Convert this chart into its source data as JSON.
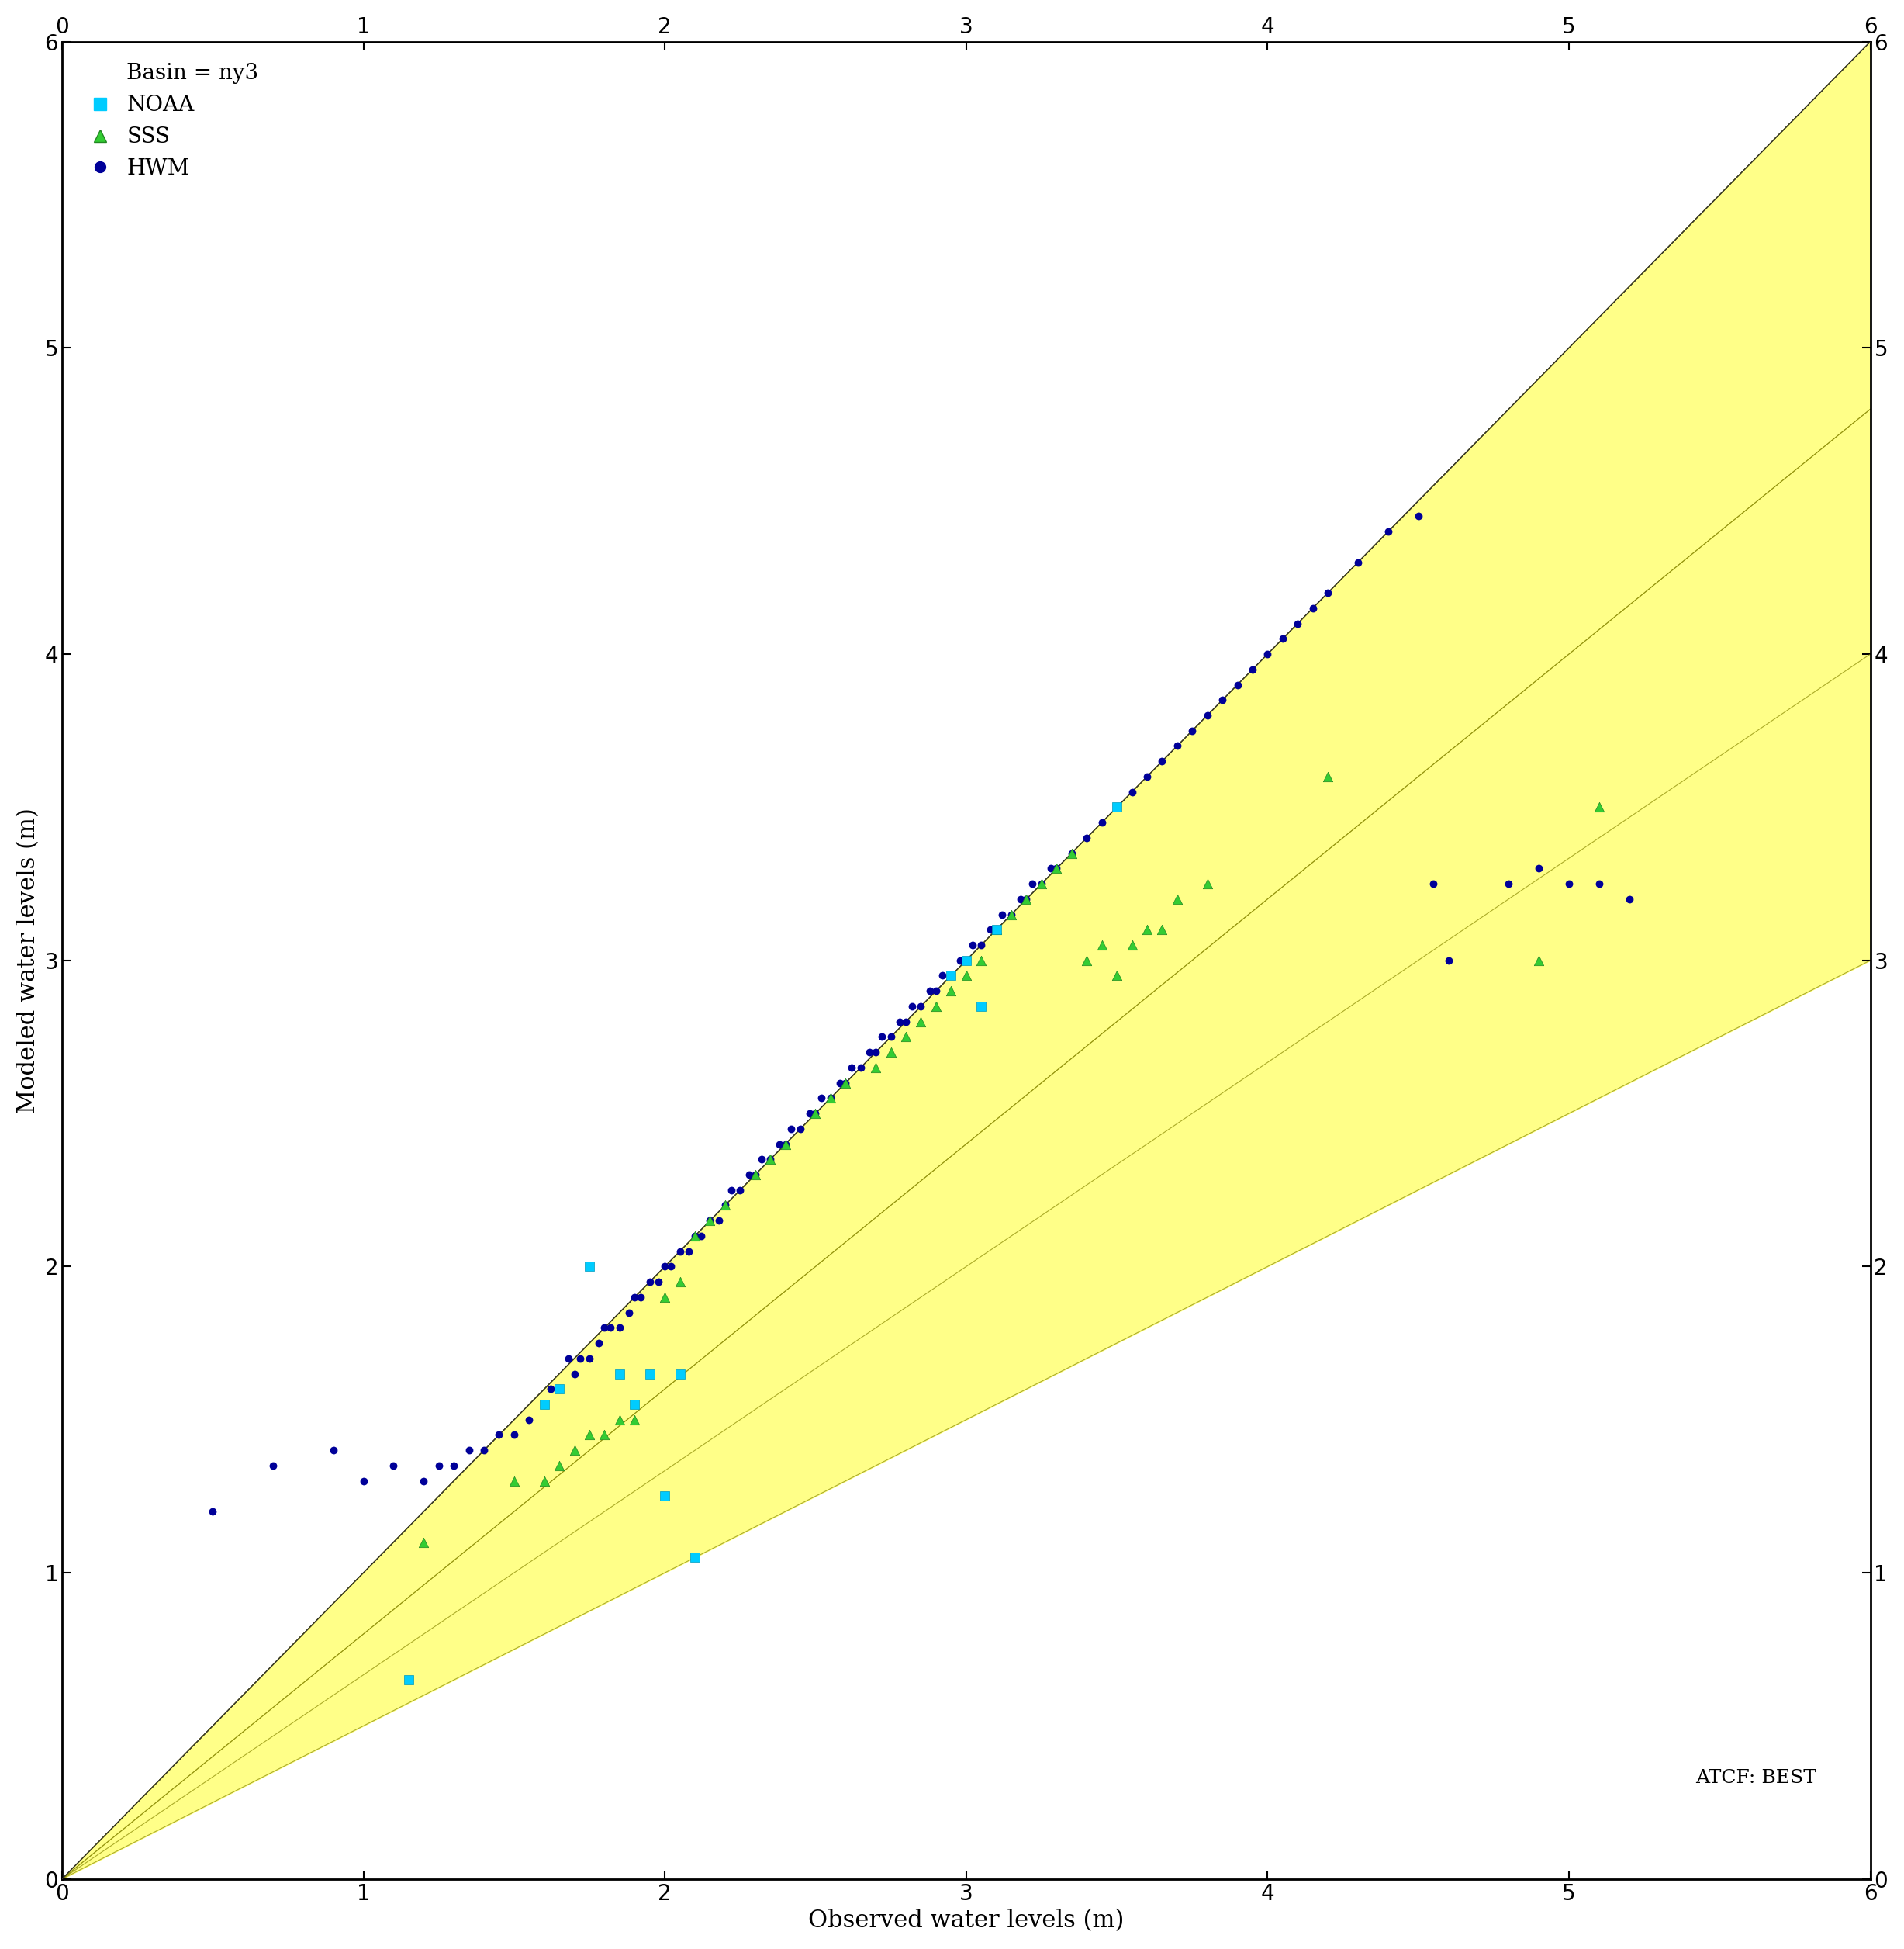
{
  "title": "",
  "xlabel": "Observed water levels (m)",
  "ylabel": "Modeled water levels (m)",
  "basin_label": "Basin = ny3",
  "atcf_label": "ATCF: BEST",
  "xlim": [
    0,
    6
  ],
  "ylim": [
    0,
    6
  ],
  "xticks": [
    0,
    1,
    2,
    3,
    4,
    5,
    6
  ],
  "yticks": [
    0,
    1,
    2,
    3,
    4,
    5,
    6
  ],
  "band_factors": [
    1.5,
    1.25,
    0.75,
    0.5
  ],
  "band_colors": [
    "#FFFF99",
    "#FFCC66",
    "#FF9966",
    "#FF6666"
  ],
  "band_alphas": [
    1.0,
    1.0,
    1.0,
    1.0
  ],
  "line_color": "#333333",
  "noaa_x": [
    1.15,
    1.6,
    1.65,
    1.75,
    1.85,
    1.9,
    1.95,
    2.0,
    2.05,
    2.1,
    2.95,
    3.0,
    3.05,
    3.1,
    3.5
  ],
  "noaa_y": [
    0.65,
    1.55,
    1.6,
    2.0,
    1.65,
    1.55,
    1.65,
    1.25,
    1.65,
    1.05,
    2.95,
    3.0,
    2.85,
    3.1,
    3.5
  ],
  "sss_x": [
    1.2,
    1.5,
    1.6,
    1.65,
    1.7,
    1.75,
    1.8,
    1.85,
    1.9,
    2.0,
    2.05,
    2.1,
    2.15,
    2.2,
    2.3,
    2.35,
    2.4,
    2.5,
    2.55,
    2.6,
    2.7,
    2.75,
    2.8,
    2.85,
    2.9,
    2.95,
    3.0,
    3.05,
    3.1,
    3.15,
    3.2,
    3.25,
    3.3,
    3.35,
    3.4,
    3.45,
    3.5,
    3.55,
    3.6,
    3.65,
    3.7,
    3.8,
    4.2,
    4.9,
    5.1
  ],
  "sss_y": [
    1.1,
    1.3,
    1.3,
    1.35,
    1.4,
    1.45,
    1.45,
    1.5,
    1.5,
    1.9,
    1.95,
    2.1,
    2.15,
    2.2,
    2.3,
    2.35,
    2.4,
    2.5,
    2.55,
    2.6,
    2.65,
    2.7,
    2.75,
    2.8,
    2.85,
    2.9,
    2.95,
    3.0,
    3.1,
    3.15,
    3.2,
    3.25,
    3.3,
    3.35,
    3.0,
    3.05,
    2.95,
    3.05,
    3.1,
    3.1,
    3.2,
    3.25,
    3.6,
    3.0,
    3.5
  ],
  "hwm_x": [
    0.5,
    0.7,
    0.9,
    1.0,
    1.1,
    1.2,
    1.25,
    1.3,
    1.35,
    1.4,
    1.45,
    1.5,
    1.55,
    1.6,
    1.62,
    1.65,
    1.68,
    1.7,
    1.72,
    1.75,
    1.78,
    1.8,
    1.82,
    1.85,
    1.88,
    1.9,
    1.92,
    1.95,
    1.98,
    2.0,
    2.02,
    2.05,
    2.08,
    2.1,
    2.12,
    2.15,
    2.18,
    2.2,
    2.22,
    2.25,
    2.28,
    2.3,
    2.32,
    2.35,
    2.38,
    2.4,
    2.42,
    2.45,
    2.48,
    2.5,
    2.52,
    2.55,
    2.58,
    2.6,
    2.62,
    2.65,
    2.68,
    2.7,
    2.72,
    2.75,
    2.78,
    2.8,
    2.82,
    2.85,
    2.88,
    2.9,
    2.92,
    2.95,
    2.98,
    3.0,
    3.02,
    3.05,
    3.08,
    3.1,
    3.12,
    3.15,
    3.18,
    3.2,
    3.22,
    3.25,
    3.28,
    3.3,
    3.35,
    3.4,
    3.45,
    3.5,
    3.55,
    3.6,
    3.65,
    3.7,
    3.75,
    3.8,
    3.85,
    3.9,
    3.95,
    4.0,
    4.05,
    4.1,
    4.15,
    4.2,
    4.3,
    4.4,
    4.5,
    4.55,
    4.6,
    4.8,
    4.9,
    5.0,
    5.1,
    5.2
  ],
  "hwm_y": [
    1.2,
    1.35,
    1.4,
    1.3,
    1.35,
    1.3,
    1.35,
    1.35,
    1.4,
    1.4,
    1.45,
    1.45,
    1.5,
    1.55,
    1.6,
    1.6,
    1.7,
    1.65,
    1.7,
    1.7,
    1.75,
    1.8,
    1.8,
    1.8,
    1.85,
    1.9,
    1.9,
    1.95,
    1.95,
    2.0,
    2.0,
    2.05,
    2.05,
    2.1,
    2.1,
    2.15,
    2.15,
    2.2,
    2.25,
    2.25,
    2.3,
    2.3,
    2.35,
    2.35,
    2.4,
    2.4,
    2.45,
    2.45,
    2.5,
    2.5,
    2.55,
    2.55,
    2.6,
    2.6,
    2.65,
    2.65,
    2.7,
    2.7,
    2.75,
    2.75,
    2.8,
    2.8,
    2.85,
    2.85,
    2.9,
    2.9,
    2.95,
    2.95,
    3.0,
    3.0,
    3.05,
    3.05,
    3.1,
    3.1,
    3.15,
    3.15,
    3.2,
    3.2,
    3.25,
    3.25,
    3.3,
    3.3,
    3.35,
    3.4,
    3.45,
    3.5,
    3.55,
    3.6,
    3.65,
    3.7,
    3.75,
    3.8,
    3.85,
    3.9,
    3.95,
    4.0,
    4.05,
    4.1,
    4.15,
    4.2,
    4.3,
    4.4,
    4.45,
    3.25,
    3.0,
    3.25,
    3.3,
    3.25,
    3.25,
    3.2
  ],
  "noaa_color": "#00CCFF",
  "sss_color": "#33CC33",
  "hwm_color": "#000099",
  "marker_size_noaa": 80,
  "marker_size_sss": 80,
  "marker_size_hwm": 50,
  "fontsize_labels": 22,
  "fontsize_ticks": 20,
  "fontsize_legend": 20,
  "fontsize_annotation": 18,
  "background_color": "#FFFFFF"
}
